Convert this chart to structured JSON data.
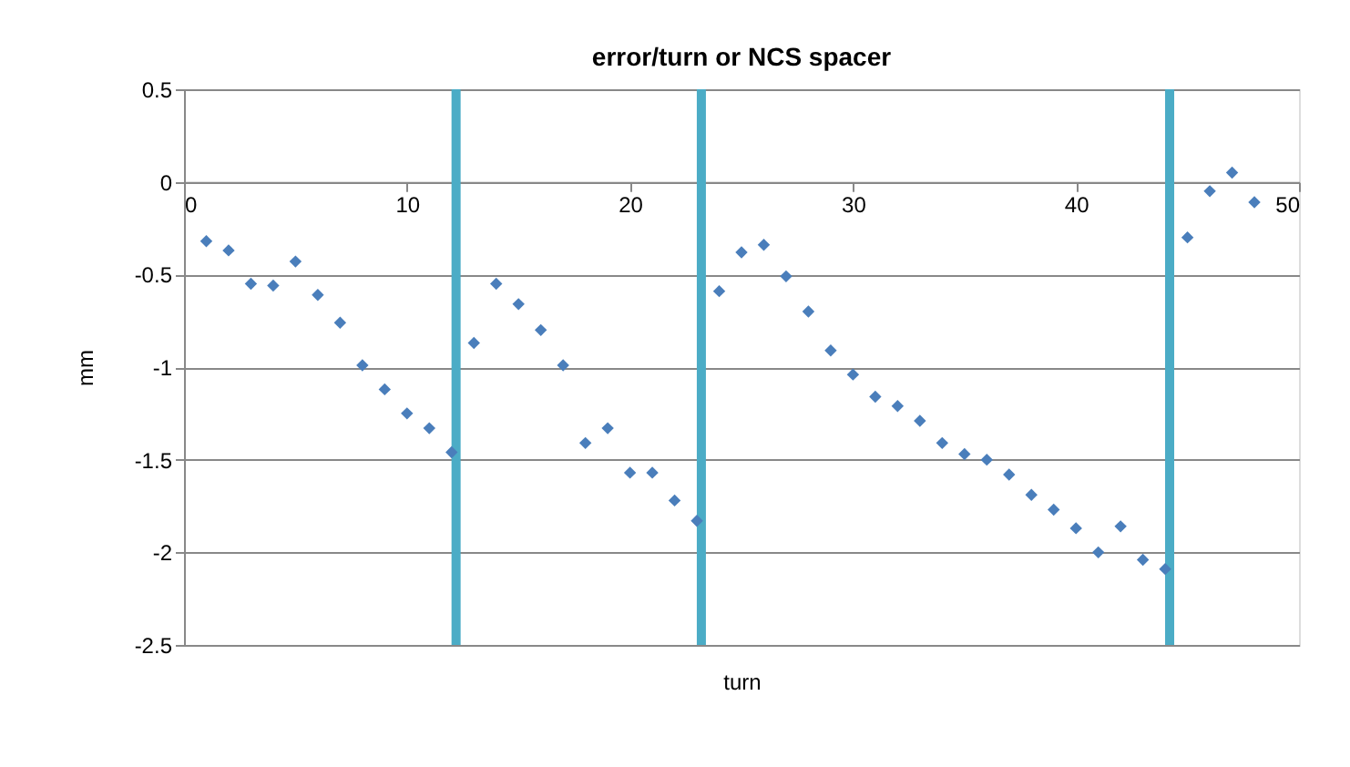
{
  "chart_data": {
    "type": "scatter",
    "title": "error/turn or NCS spacer",
    "xlabel": "turn",
    "ylabel": "mm",
    "x": [
      1,
      2,
      3,
      4,
      5,
      6,
      7,
      8,
      9,
      10,
      11,
      12,
      13,
      14,
      15,
      16,
      17,
      18,
      19,
      20,
      21,
      22,
      23,
      24,
      25,
      26,
      27,
      28,
      29,
      30,
      31,
      32,
      33,
      34,
      35,
      36,
      37,
      38,
      39,
      40,
      41,
      42,
      43,
      44,
      45,
      46,
      47,
      48
    ],
    "series": [
      {
        "color": "#4a7ebb",
        "values": [
          -0.32,
          -0.37,
          -0.55,
          -0.56,
          -0.43,
          -0.61,
          -0.76,
          -0.99,
          -1.12,
          -1.25,
          -1.33,
          -1.46,
          -0.87,
          -0.55,
          -0.66,
          -0.8,
          -0.99,
          -1.41,
          -1.33,
          -1.57,
          -1.57,
          -1.72,
          -1.83,
          -0.59,
          -0.38,
          -0.34,
          -0.51,
          -0.7,
          -0.91,
          -1.04,
          -1.16,
          -1.21,
          -1.29,
          -1.41,
          -1.47,
          -1.5,
          -1.58,
          -1.69,
          -1.77,
          -1.87,
          -2.0,
          -1.86,
          -2.04,
          -2.09,
          -0.3,
          -0.05,
          0.05,
          -0.11
        ]
      }
    ],
    "xlim": [
      0,
      50
    ],
    "xticks": [
      0,
      10,
      20,
      30,
      40,
      50
    ],
    "ylim": [
      -2.5,
      0.5
    ],
    "yticks": [
      -2.5,
      -2,
      -1.5,
      -1,
      -0.5,
      0,
      0.5
    ],
    "ref_lines": [
      {
        "axis": "x",
        "value": 12.2,
        "color": "#4bacc6"
      },
      {
        "axis": "x",
        "value": 23.2,
        "color": "#4bacc6"
      },
      {
        "axis": "x",
        "value": 44.2,
        "color": "#4bacc6"
      }
    ],
    "grid": "y",
    "marker": "diamond",
    "legend": false
  }
}
